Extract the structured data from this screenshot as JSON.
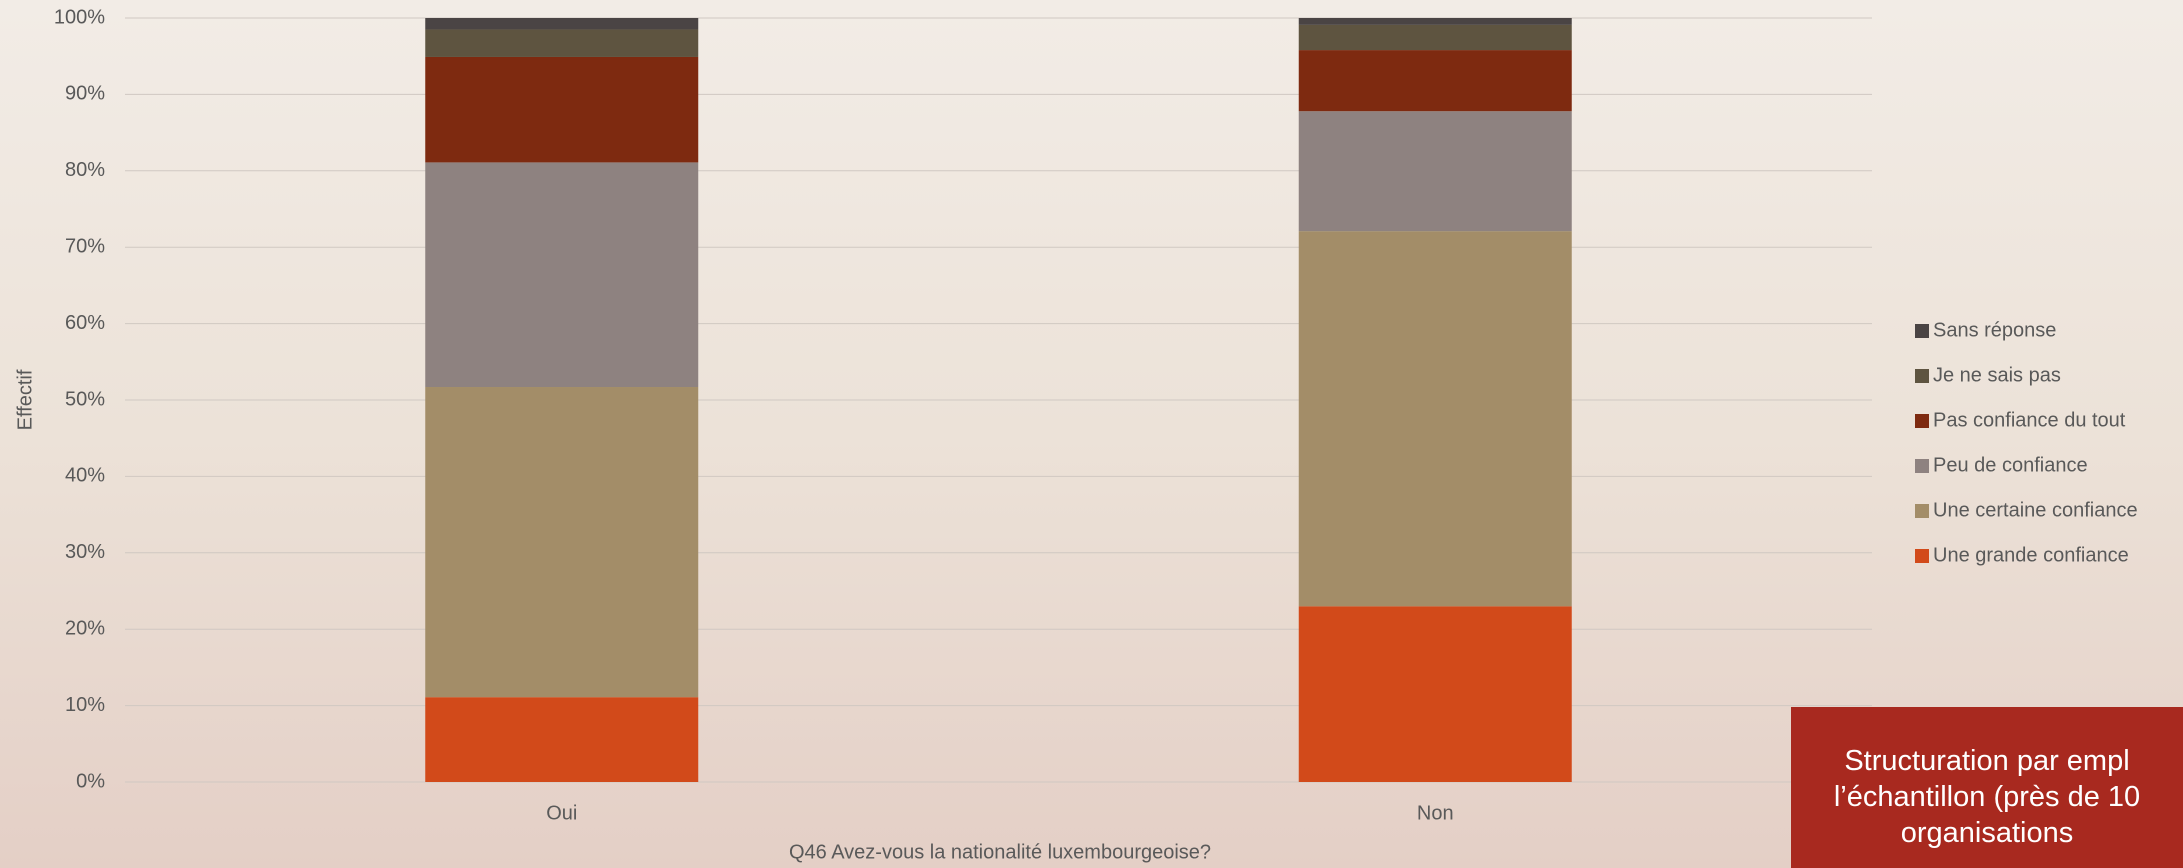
{
  "chart_data": {
    "type": "stacked_bar",
    "x_label": "Q46 Avez-vous la nationalité luxembourgeoise?",
    "y_label": "Effectif",
    "categories": [
      "Oui",
      "Non"
    ],
    "series": [
      {
        "name": "Une grande confiance",
        "color": "#d24a1a",
        "values": [
          11.1,
          23.0
        ]
      },
      {
        "name": "Une certaine confiance",
        "color": "#a38d68",
        "values": [
          40.6,
          49.1
        ]
      },
      {
        "name": "Peu de confiance",
        "color": "#8e8280",
        "values": [
          29.4,
          15.7
        ]
      },
      {
        "name": "Pas confiance du tout",
        "color": "#7e2a10",
        "values": [
          13.8,
          8.0
        ]
      },
      {
        "name": "Je ne sais pas",
        "color": "#5e5440",
        "values": [
          3.6,
          3.3
        ]
      },
      {
        "name": "Sans réponse",
        "color": "#4a4444",
        "values": [
          1.5,
          0.9
        ]
      }
    ],
    "ylim": [
      0,
      100
    ],
    "yticks": [
      {
        "value": 0,
        "label": "0%"
      },
      {
        "value": 10,
        "label": "10%"
      },
      {
        "value": 20,
        "label": "20%"
      },
      {
        "value": 30,
        "label": "30%"
      },
      {
        "value": 40,
        "label": "40%"
      },
      {
        "value": 50,
        "label": "50%"
      },
      {
        "value": 60,
        "label": "60%"
      },
      {
        "value": 70,
        "label": "70%"
      },
      {
        "value": 80,
        "label": "80%"
      },
      {
        "value": 90,
        "label": "90%"
      },
      {
        "value": 100,
        "label": "100%"
      }
    ],
    "grid": true,
    "legend_position": "right"
  },
  "callout": {
    "lines": [
      "Structuration par  empl",
      "l’échantillon (près de 10",
      "organisations"
    ]
  }
}
